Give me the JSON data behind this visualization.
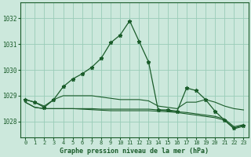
{
  "title": "Graphe pression niveau de la mer (hPa)",
  "background_color": "#cce8dc",
  "grid_color": "#99ccb8",
  "line_color": "#1a5c2a",
  "xlim": [
    -0.5,
    23.5
  ],
  "ylim": [
    1027.4,
    1032.6
  ],
  "yticks": [
    1028,
    1029,
    1030,
    1031,
    1032
  ],
  "xticks": [
    0,
    1,
    2,
    3,
    4,
    5,
    6,
    7,
    8,
    9,
    10,
    11,
    12,
    13,
    14,
    15,
    16,
    17,
    18,
    19,
    20,
    21,
    22,
    23
  ],
  "hours": [
    0,
    1,
    2,
    3,
    4,
    5,
    6,
    7,
    8,
    9,
    10,
    11,
    12,
    13,
    14,
    15,
    16,
    17,
    18,
    19,
    20,
    21,
    22,
    23
  ],
  "line_main": [
    1028.85,
    1028.75,
    1028.55,
    1028.85,
    1029.35,
    1029.65,
    1029.85,
    1030.1,
    1030.45,
    1031.05,
    1031.35,
    1031.9,
    1031.1,
    1030.3,
    1028.45,
    1028.45,
    1028.4,
    1029.3,
    1029.2,
    1028.85,
    1028.4,
    1028.05,
    1027.75,
    1027.85
  ],
  "line_hi": [
    1028.85,
    1028.75,
    1028.6,
    1028.85,
    1029.0,
    1029.0,
    1029.0,
    1029.0,
    1028.95,
    1028.9,
    1028.85,
    1028.85,
    1028.85,
    1028.8,
    1028.6,
    1028.55,
    1028.5,
    1028.75,
    1028.75,
    1028.85,
    1028.75,
    1028.6,
    1028.5,
    1028.45
  ],
  "line_mid": [
    1028.75,
    1028.55,
    1028.5,
    1028.5,
    1028.5,
    1028.5,
    1028.5,
    1028.5,
    1028.48,
    1028.48,
    1028.48,
    1028.48,
    1028.48,
    1028.48,
    1028.45,
    1028.42,
    1028.38,
    1028.35,
    1028.3,
    1028.25,
    1028.2,
    1028.1,
    1027.8,
    1027.88
  ],
  "line_lo": [
    1028.75,
    1028.55,
    1028.5,
    1028.5,
    1028.5,
    1028.5,
    1028.48,
    1028.46,
    1028.44,
    1028.42,
    1028.42,
    1028.42,
    1028.42,
    1028.42,
    1028.4,
    1028.38,
    1028.35,
    1028.3,
    1028.25,
    1028.2,
    1028.15,
    1028.05,
    1027.72,
    1027.82
  ]
}
